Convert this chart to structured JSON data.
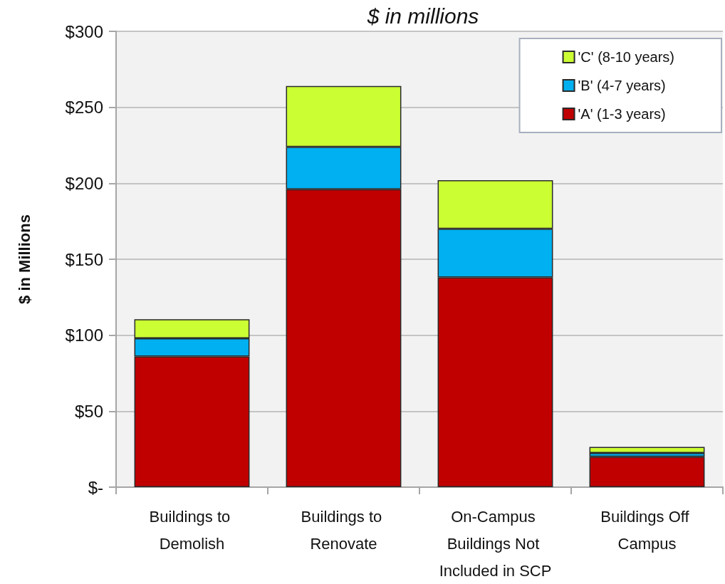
{
  "chart_data": {
    "type": "bar",
    "title": "$ in millions",
    "ylabel": "$ in Millions",
    "categories": [
      "Buildings to Demolish",
      "Buildings to Renovate",
      "On-Campus Buildings Not Included in SCP",
      "Buildings Off Campus"
    ],
    "series": [
      {
        "name": "'A' (1-3 years)",
        "color": "#c00000",
        "values": [
          86,
          196,
          138,
          20
        ]
      },
      {
        "name": "'B' (4-7 years)",
        "color": "#00b0f0",
        "values": [
          12,
          28,
          32,
          2.5
        ]
      },
      {
        "name": "'C' (8-10 years)",
        "color": "#ccff33",
        "values": [
          12.5,
          40,
          32,
          4
        ]
      }
    ],
    "stacked": true,
    "ylim": [
      0,
      300
    ],
    "yticks": [
      {
        "value": 0,
        "label": "$-"
      },
      {
        "value": 50,
        "label": "$50"
      },
      {
        "value": 100,
        "label": "$100"
      },
      {
        "value": 150,
        "label": "$150"
      },
      {
        "value": 200,
        "label": "$200"
      },
      {
        "value": 250,
        "label": "$250"
      },
      {
        "value": 300,
        "label": "$300"
      }
    ],
    "grid": "y",
    "legend": "top right"
  }
}
